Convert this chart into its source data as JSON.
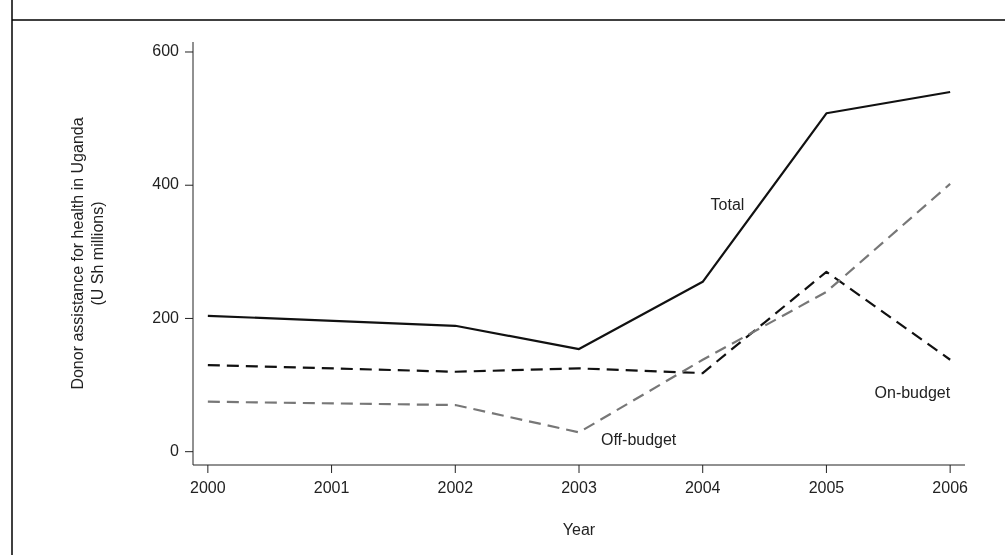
{
  "chart_data": {
    "type": "line",
    "xlabel": "Year",
    "ylabel": "Donor assistance for health in Uganda\n(U Sh millions)",
    "x": [
      2000,
      2002,
      2003,
      2004,
      2005,
      2006
    ],
    "xlim": [
      1999.88,
      2006.12
    ],
    "xticks": [
      {
        "value": 2000,
        "label": "2000"
      },
      {
        "value": 2001,
        "label": "2001"
      },
      {
        "value": 2002,
        "label": "2002"
      },
      {
        "value": 2003,
        "label": "2003"
      },
      {
        "value": 2004,
        "label": "2004"
      },
      {
        "value": 2005,
        "label": "2005"
      },
      {
        "value": 2006,
        "label": "2006"
      }
    ],
    "ylim": [
      -20,
      615
    ],
    "yticks": [
      0,
      200,
      400,
      600
    ],
    "grid": false,
    "marker": "none",
    "series": [
      {
        "name": "Total",
        "color": "#111111",
        "line_style": "solid",
        "values": [
          204,
          189,
          154,
          255,
          508,
          540
        ]
      },
      {
        "name": "On-budget",
        "color": "#111111",
        "line_style": "dashed",
        "values": [
          130,
          120,
          125,
          118,
          270,
          138
        ]
      },
      {
        "name": "Off-budget",
        "color": "#777777",
        "line_style": "dashed",
        "values": [
          75,
          70,
          29,
          138,
          240,
          402
        ]
      }
    ]
  }
}
